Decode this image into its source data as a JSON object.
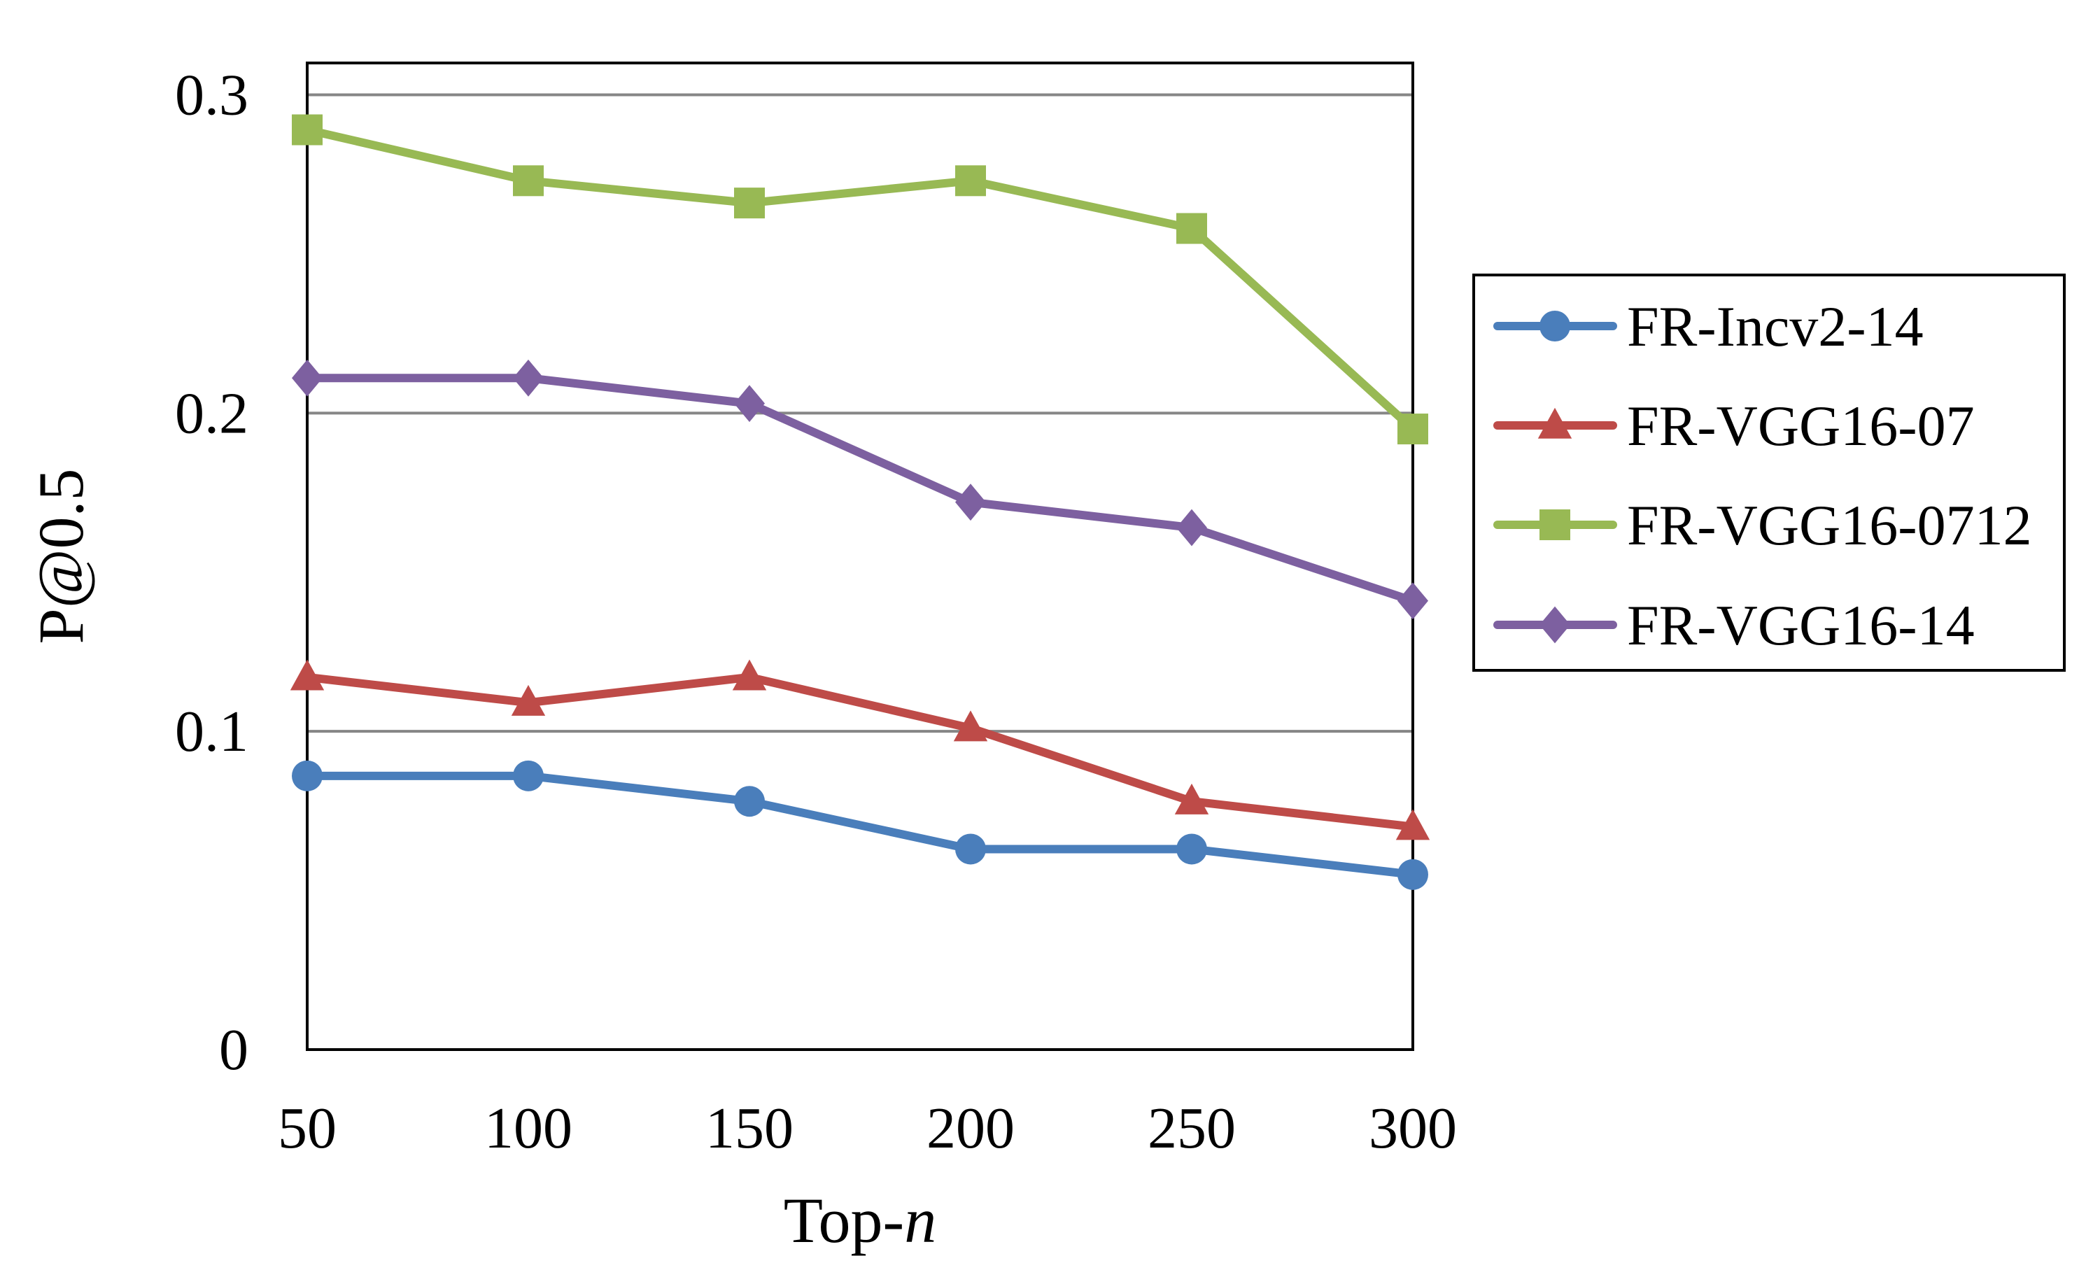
{
  "chart_data": {
    "type": "line",
    "title": "",
    "xlabel": {
      "text": "Top-",
      "italic_suffix": "n"
    },
    "ylabel": "P@0.5",
    "x": [
      50,
      100,
      150,
      200,
      250,
      300
    ],
    "x_tick_labels": [
      "50",
      "100",
      "150",
      "200",
      "250",
      "300"
    ],
    "y_tick_labels": [
      "0",
      "0.1",
      "0.2",
      "0.3"
    ],
    "y_ticks": [
      0,
      0.1,
      0.2,
      0.3
    ],
    "ylim": [
      0,
      0.31
    ],
    "grid": {
      "horizontal": true,
      "values": [
        0.1,
        0.2,
        0.3
      ]
    },
    "legend_position": "right",
    "series": [
      {
        "name": "FR-Incv2-14",
        "color": "#4a7ebb",
        "marker": "circle",
        "values": [
          0.086,
          0.086,
          0.078,
          0.063,
          0.063,
          0.055
        ]
      },
      {
        "name": "FR-VGG16-07",
        "color": "#be4b48",
        "marker": "triangle",
        "values": [
          0.117,
          0.109,
          0.117,
          0.101,
          0.078,
          0.07
        ]
      },
      {
        "name": "FR-VGG16-0712",
        "color": "#98b954",
        "marker": "square",
        "values": [
          0.289,
          0.273,
          0.266,
          0.273,
          0.258,
          0.195
        ]
      },
      {
        "name": "FR-VGG16-14",
        "color": "#7d60a0",
        "marker": "diamond",
        "values": [
          0.211,
          0.211,
          0.203,
          0.172,
          0.164,
          0.141
        ]
      }
    ]
  }
}
